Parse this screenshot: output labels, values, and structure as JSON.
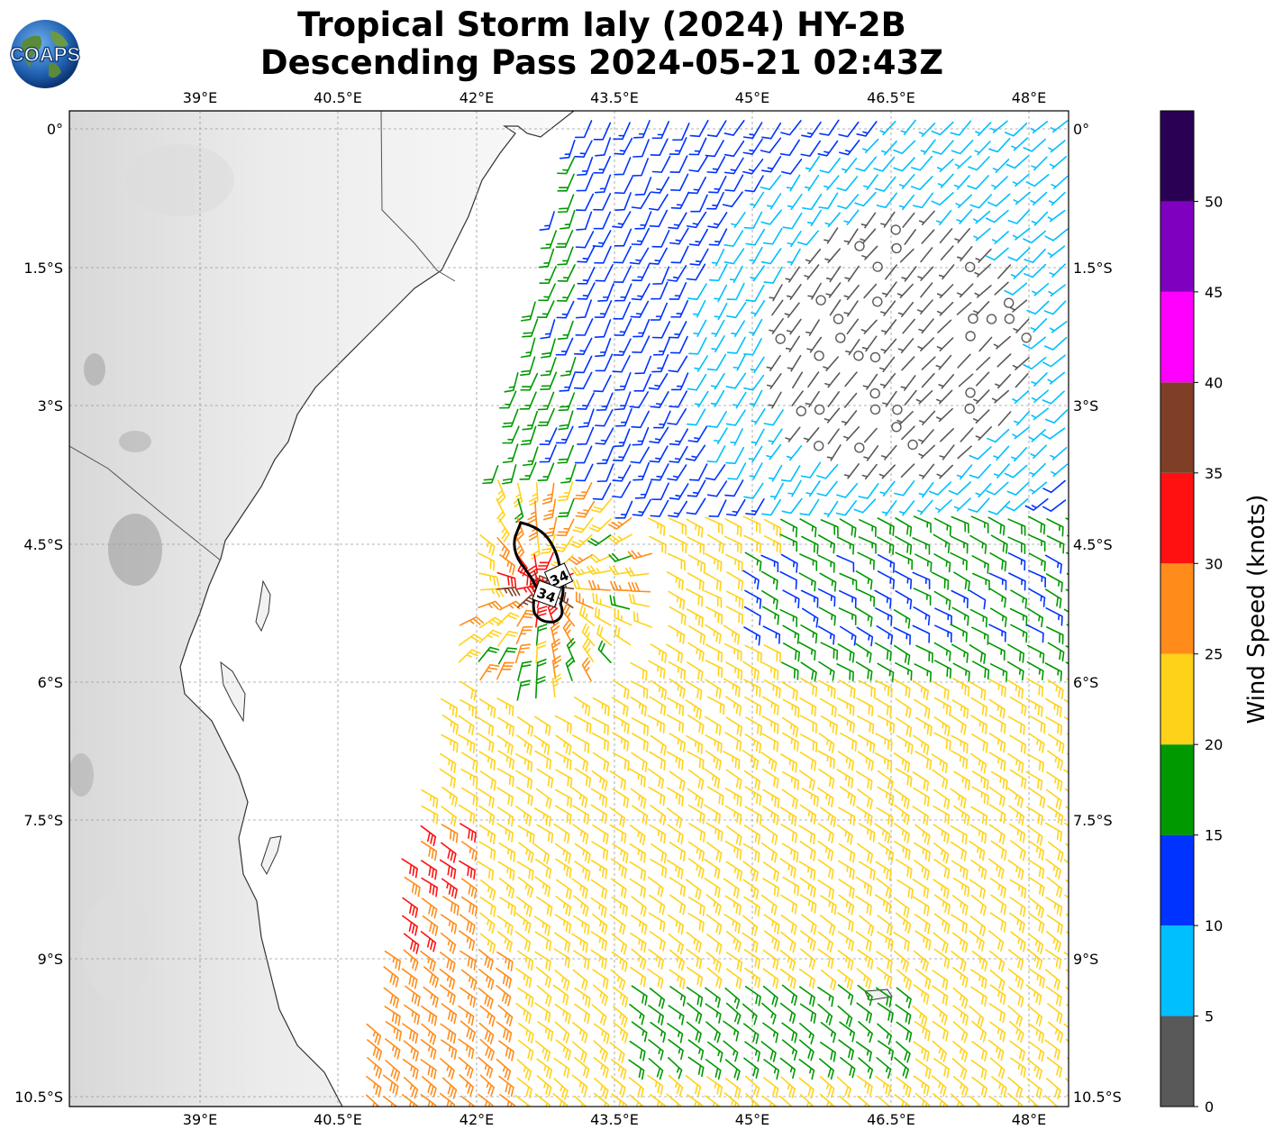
{
  "title": {
    "line1": "Tropical Storm Ialy (2024) HY-2B",
    "line2": "Descending Pass 2024-05-21 02:43Z"
  },
  "logo": {
    "text": "COAPS"
  },
  "map": {
    "lon_range": [
      37.6,
      48.4
    ],
    "lat_range": [
      -10.6,
      0.2
    ],
    "lon_ticks": [
      39,
      40.5,
      42,
      43.5,
      45,
      46.5,
      48
    ],
    "lon_tick_labels": [
      "39°E",
      "40.5°E",
      "42°E",
      "43.5°E",
      "45°E",
      "46.5°E",
      "48°E"
    ],
    "lat_ticks": [
      0,
      -1.5,
      -3,
      -4.5,
      -6,
      -7.5,
      -9,
      -10.5
    ],
    "lat_tick_labels": [
      "0°",
      "1.5°S",
      "3°S",
      "4.5°S",
      "6°S",
      "7.5°S",
      "9°S",
      "10.5°S"
    ],
    "storm_center": {
      "lon": 42.7,
      "lat": -4.95
    },
    "contour_labels": [
      "34",
      "34"
    ]
  },
  "colorbar": {
    "label": "Wind Speed (knots)",
    "tick_labels": [
      "0",
      "5",
      "10",
      "15",
      "20",
      "25",
      "30",
      "35",
      "40",
      "45",
      "50"
    ],
    "bins": [
      {
        "min": 0,
        "max": 5,
        "color": "#595959"
      },
      {
        "min": 5,
        "max": 10,
        "color": "#00bfff"
      },
      {
        "min": 10,
        "max": 15,
        "color": "#0033ff"
      },
      {
        "min": 15,
        "max": 20,
        "color": "#009900"
      },
      {
        "min": 20,
        "max": 25,
        "color": "#ffd21a"
      },
      {
        "min": 25,
        "max": 30,
        "color": "#ff8c1a"
      },
      {
        "min": 30,
        "max": 35,
        "color": "#ff1111"
      },
      {
        "min": 35,
        "max": 40,
        "color": "#7f3f26"
      },
      {
        "min": 40,
        "max": 45,
        "color": "#ff00ff"
      },
      {
        "min": 45,
        "max": 50,
        "color": "#8000c0"
      },
      {
        "min": 50,
        "max": 55,
        "color": "#2a0055"
      }
    ]
  }
}
